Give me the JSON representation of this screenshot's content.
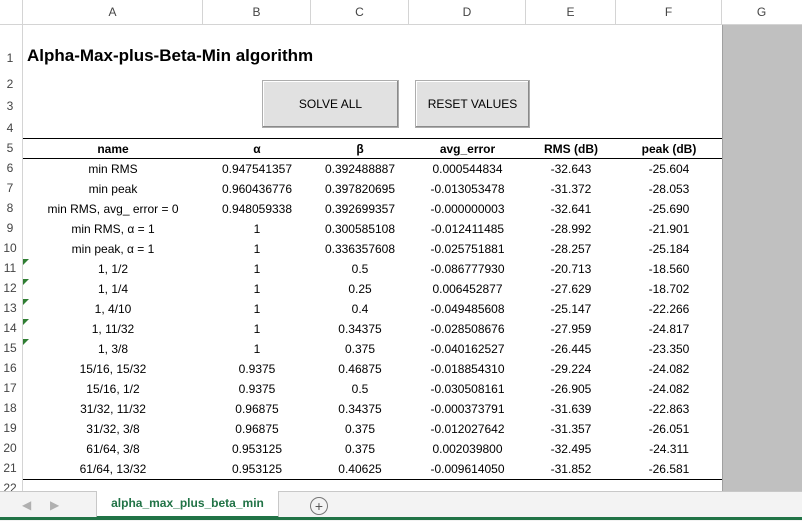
{
  "columns": [
    "A",
    "B",
    "C",
    "D",
    "E",
    "F",
    "G"
  ],
  "rows": [
    "1",
    "2",
    "3",
    "4",
    "5",
    "6",
    "7",
    "8",
    "9",
    "10",
    "11",
    "12",
    "13",
    "14",
    "15",
    "16",
    "17",
    "18",
    "19",
    "20",
    "21",
    "22"
  ],
  "title": "Alpha-Max-plus-Beta-Min algorithm",
  "buttons": {
    "solve": "SOLVE ALL",
    "reset": "RESET VALUES"
  },
  "table": {
    "headers": [
      "name",
      "α",
      "β",
      "avg_error",
      "RMS (dB)",
      "peak (dB)"
    ],
    "rows": [
      [
        "min RMS",
        "0.947541357",
        "0.392488887",
        "0.000544834",
        "-32.643",
        "-25.604"
      ],
      [
        "min peak",
        "0.960436776",
        "0.397820695",
        "-0.013053478",
        "-31.372",
        "-28.053"
      ],
      [
        "min RMS, avg_ error = 0",
        "0.948059338",
        "0.392699357",
        "-0.000000003",
        "-32.641",
        "-25.690"
      ],
      [
        "min RMS, α = 1",
        "1",
        "0.300585108",
        "-0.012411485",
        "-28.992",
        "-21.901"
      ],
      [
        "min peak, α = 1",
        "1",
        "0.336357608",
        "-0.025751881",
        "-28.257",
        "-25.184"
      ],
      [
        "1, 1/2",
        "1",
        "0.5",
        "-0.086777930",
        "-20.713",
        "-18.560"
      ],
      [
        "1, 1/4",
        "1",
        "0.25",
        "0.006452877",
        "-27.629",
        "-18.702"
      ],
      [
        "1, 4/10",
        "1",
        "0.4",
        "-0.049485608",
        "-25.147",
        "-22.266"
      ],
      [
        "1, 11/32",
        "1",
        "0.34375",
        "-0.028508676",
        "-27.959",
        "-24.817"
      ],
      [
        "1, 3/8",
        "1",
        "0.375",
        "-0.040162527",
        "-26.445",
        "-23.350"
      ],
      [
        "15/16, 15/32",
        "0.9375",
        "0.46875",
        "-0.018854310",
        "-29.224",
        "-24.082"
      ],
      [
        "15/16, 1/2",
        "0.9375",
        "0.5",
        "-0.030508161",
        "-26.905",
        "-24.082"
      ],
      [
        "31/32, 11/32",
        "0.96875",
        "0.34375",
        "-0.000373791",
        "-31.639",
        "-22.863"
      ],
      [
        "31/32, 3/8",
        "0.96875",
        "0.375",
        "-0.012027642",
        "-31.357",
        "-26.051"
      ],
      [
        "61/64, 3/8",
        "0.953125",
        "0.375",
        "0.002039800",
        "-32.495",
        "-24.311"
      ],
      [
        "61/64, 13/32",
        "0.953125",
        "0.40625",
        "-0.009614050",
        "-31.852",
        "-26.581"
      ]
    ]
  },
  "sheet_tab": "alpha_max_plus_beta_min",
  "nav": {
    "prev": "◀",
    "next": "▶"
  },
  "add_sheet": "+",
  "colors": {
    "accent": "#217346",
    "gray_area": "#c0c0c0"
  }
}
